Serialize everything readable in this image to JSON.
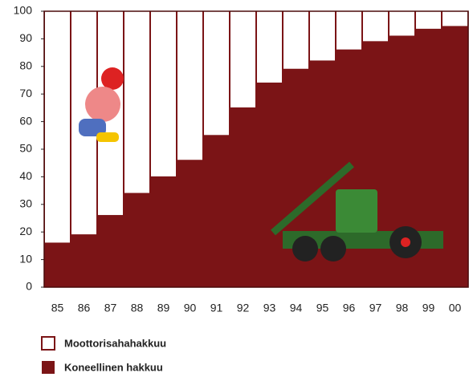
{
  "chart_data": {
    "type": "stacked_bar",
    "categories": [
      "85",
      "86",
      "87",
      "88",
      "89",
      "90",
      "91",
      "92",
      "93",
      "94",
      "95",
      "96",
      "97",
      "98",
      "99",
      "00"
    ],
    "series": [
      {
        "name": "Koneellinen hakkuu",
        "color": "#7b1416",
        "values": [
          16,
          19,
          26,
          34,
          40,
          46,
          55,
          65,
          74,
          79,
          82,
          86,
          89,
          91,
          93.5,
          94.5
        ]
      },
      {
        "name": "Moottorisahahakkuu",
        "color": "#ffffff",
        "values": [
          84,
          81,
          74,
          66,
          60,
          54,
          45,
          35,
          26,
          21,
          18,
          14,
          11,
          9,
          6.5,
          5.5
        ]
      }
    ],
    "ylim": [
      0,
      100
    ],
    "yticks": [
      0,
      10,
      20,
      30,
      40,
      50,
      60,
      70,
      80,
      90,
      100
    ]
  }
}
